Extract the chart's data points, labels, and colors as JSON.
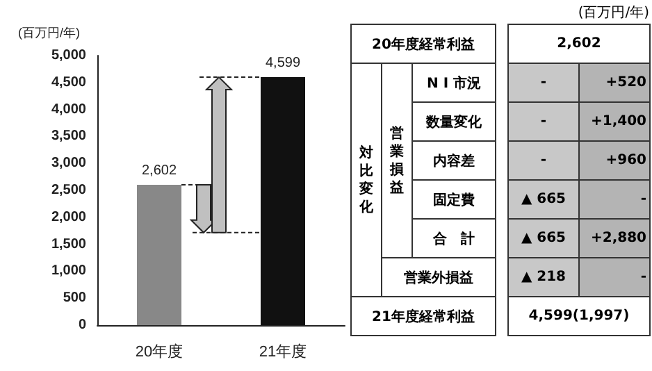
{
  "chart_data": [
    {
      "type": "bar",
      "ylabel": "(百万円/年)",
      "categories": [
        "20年度",
        "21年度"
      ],
      "values": [
        2602,
        4599
      ],
      "value_labels": [
        "2,602",
        "4,599"
      ],
      "colors": [
        "#888888",
        "#111111"
      ],
      "ylim": [
        0,
        5000
      ],
      "yticks": [
        0,
        500,
        {
          "value": 1000,
          "label": "1,000"
        },
        {
          "value": 1500,
          "label": "1,500"
        },
        {
          "value": 2000,
          "label": "2,000"
        },
        {
          "value": 2500,
          "label": "2,500"
        },
        {
          "value": 3000,
          "label": "3,000"
        },
        {
          "value": 3500,
          "label": "3,500"
        },
        {
          "value": 4000,
          "label": "4,000"
        },
        {
          "value": 4500,
          "label": "4,500"
        },
        {
          "value": 5000,
          "label": "5,000"
        }
      ],
      "grid": false
    },
    {
      "type": "other",
      "title": "(百万円/年)",
      "annotations": [
        "20年度経常利益",
        "2,602",
        "対比変化",
        "営業損益",
        "N I 市況",
        "-",
        "+520",
        "数量変化",
        "-",
        "+1,400",
        "内容差",
        "-",
        "+960",
        "固定費",
        "▲ 665",
        "-",
        "合　計",
        "▲ 665",
        "+2,880",
        "営業外損益",
        "▲ 218",
        "-",
        "21年度経常利益",
        "4,599(1,997)"
      ]
    }
  ]
}
